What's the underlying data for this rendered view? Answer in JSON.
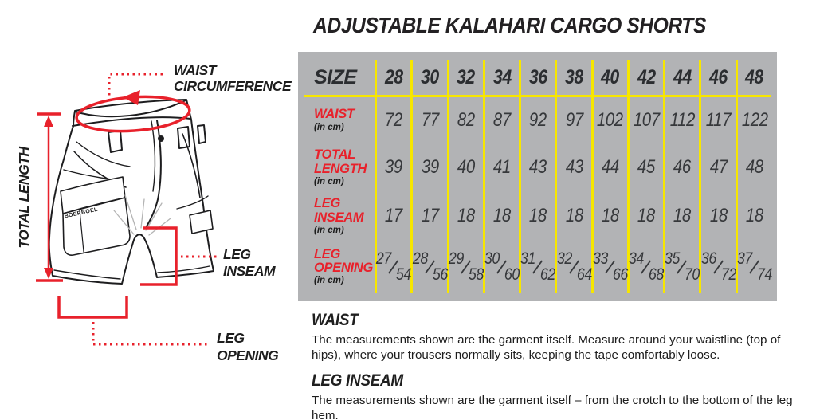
{
  "title": "ADJUSTABLE KALAHARI CARGO SHORTS",
  "diagram": {
    "labels": {
      "waist_circumference": [
        "WAIST",
        "CIRCUMFERENCE"
      ],
      "total_length": "TOTAL LENGTH",
      "leg_inseam": [
        "LEG",
        "INSEAM"
      ],
      "leg_opening": [
        "LEG",
        "OPENING"
      ],
      "brand": "BOERBOEL"
    }
  },
  "chart_data": {
    "type": "table",
    "title": "ADJUSTABLE KALAHARI CARGO SHORTS",
    "columns": [
      "SIZE",
      "28",
      "30",
      "32",
      "34",
      "36",
      "38",
      "40",
      "42",
      "44",
      "46",
      "48"
    ],
    "rows": [
      {
        "label": "WAIST",
        "unit": "(in cm)",
        "values": [
          72,
          77,
          82,
          87,
          92,
          97,
          102,
          107,
          112,
          117,
          122
        ]
      },
      {
        "label": "TOTAL LENGTH",
        "unit": "(in cm)",
        "values": [
          39,
          39,
          40,
          41,
          43,
          43,
          44,
          45,
          46,
          47,
          48
        ]
      },
      {
        "label": "LEG INSEAM",
        "unit": "(in cm)",
        "values": [
          17,
          17,
          18,
          18,
          18,
          18,
          18,
          18,
          18,
          18,
          18
        ]
      },
      {
        "label": "LEG OPENING",
        "unit": "(in cm)",
        "values": [
          [
            27,
            54
          ],
          [
            28,
            56
          ],
          [
            29,
            58
          ],
          [
            30,
            60
          ],
          [
            31,
            62
          ],
          [
            32,
            64
          ],
          [
            33,
            66
          ],
          [
            34,
            68
          ],
          [
            35,
            70
          ],
          [
            36,
            72
          ],
          [
            37,
            74
          ]
        ]
      }
    ]
  },
  "notes": [
    {
      "heading": "WAIST",
      "body": "The measurements shown are the garment itself. Measure around your waistline (top of hips), where your trousers normally sits, keeping the tape comfortably loose."
    },
    {
      "heading": "LEG INSEAM",
      "body": "The measurements shown are the garment itself – from the crotch to the bottom of the leg hem."
    }
  ],
  "colors": {
    "accent_red": "#e8212b",
    "grid_yellow": "#f7e600",
    "table_bg": "#b2b3b5",
    "text_dark": "#2b2d30"
  }
}
